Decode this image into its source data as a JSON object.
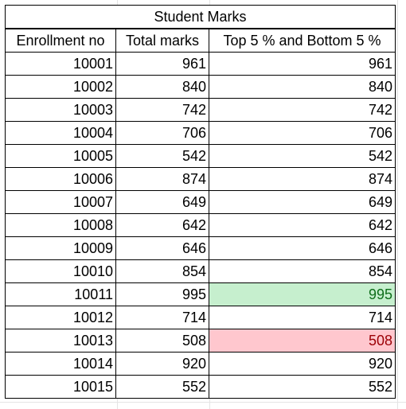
{
  "table": {
    "title": "Student Marks",
    "headers": [
      "Enrollment no",
      "Total marks",
      "Top 5 % and Bottom 5 %"
    ],
    "rows": [
      {
        "enrollment": "10001",
        "total": "961",
        "flag": "961",
        "highlight": ""
      },
      {
        "enrollment": "10002",
        "total": "840",
        "flag": "840",
        "highlight": ""
      },
      {
        "enrollment": "10003",
        "total": "742",
        "flag": "742",
        "highlight": ""
      },
      {
        "enrollment": "10004",
        "total": "706",
        "flag": "706",
        "highlight": ""
      },
      {
        "enrollment": "10005",
        "total": "542",
        "flag": "542",
        "highlight": ""
      },
      {
        "enrollment": "10006",
        "total": "874",
        "flag": "874",
        "highlight": ""
      },
      {
        "enrollment": "10007",
        "total": "649",
        "flag": "649",
        "highlight": ""
      },
      {
        "enrollment": "10008",
        "total": "642",
        "flag": "642",
        "highlight": ""
      },
      {
        "enrollment": "10009",
        "total": "646",
        "flag": "646",
        "highlight": ""
      },
      {
        "enrollment": "10010",
        "total": "854",
        "flag": "854",
        "highlight": ""
      },
      {
        "enrollment": "10011",
        "total": "995",
        "flag": "995",
        "highlight": "top"
      },
      {
        "enrollment": "10012",
        "total": "714",
        "flag": "714",
        "highlight": ""
      },
      {
        "enrollment": "10013",
        "total": "508",
        "flag": "508",
        "highlight": "bottom"
      },
      {
        "enrollment": "10014",
        "total": "920",
        "flag": "920",
        "highlight": ""
      },
      {
        "enrollment": "10015",
        "total": "552",
        "flag": "552",
        "highlight": ""
      }
    ]
  },
  "colors": {
    "top_fill": "#c6efce",
    "top_text": "#0e6e1a",
    "bottom_fill": "#ffc7ce",
    "bottom_text": "#9c0006"
  }
}
